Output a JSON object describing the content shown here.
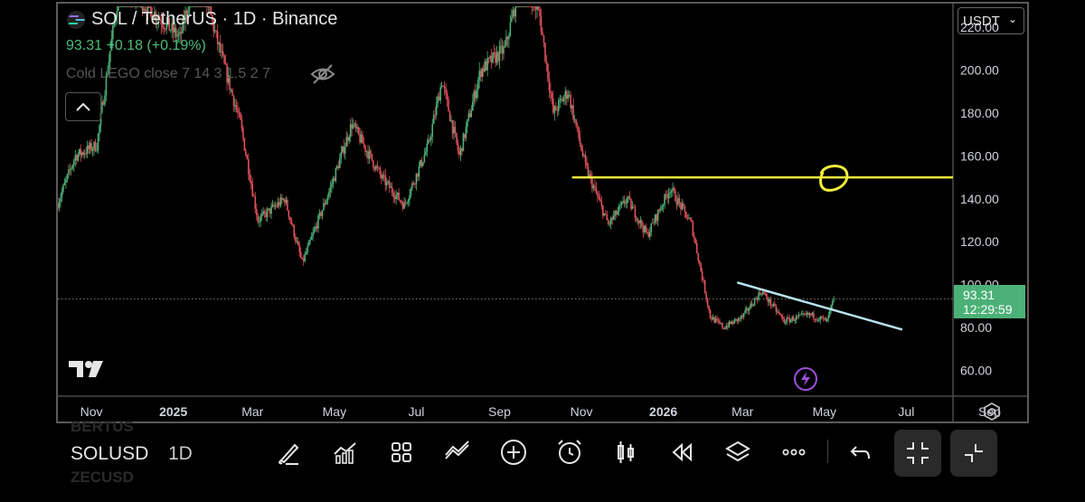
{
  "header": {
    "title": "SOL / TetherUS · 1D · Binance",
    "price_line": "93.31 +0.18 (+0.19%)",
    "indicator": "Cold LEGO close 7 14 3 1.5 2 7"
  },
  "currency": "USDT",
  "last_price": {
    "value": "93.31",
    "countdown": "12:29:59"
  },
  "colors": {
    "up": "#4cb177",
    "down": "#e0505a",
    "horizontal_line": "#f2ef3a",
    "trend_line": "#b9e3f2",
    "price_tag": "#4cb177"
  },
  "chart_data": {
    "type": "candlestick",
    "title": "SOL / TetherUS · 1D · Binance",
    "y_ticks": [
      "60.00",
      "80.00",
      "100.00",
      "120.00",
      "140.00",
      "160.00",
      "180.00",
      "200.00",
      "220.00"
    ],
    "y_range": [
      48,
      231
    ],
    "x_ticks": [
      "Nov",
      "2025",
      "Mar",
      "May",
      "Jul",
      "Sep",
      "Nov",
      "2026",
      "Mar",
      "May",
      "Jul",
      "Sep"
    ],
    "x_range": [
      "2024-10-07",
      "2026-09-29"
    ],
    "price_path": [
      [
        "2024-10-07",
        138
      ],
      [
        "2024-10-20",
        160
      ],
      [
        "2024-11-05",
        165
      ],
      [
        "2024-11-22",
        240
      ],
      [
        "2024-12-12",
        230
      ],
      [
        "2025-01-06",
        215
      ],
      [
        "2025-01-19",
        250
      ],
      [
        "2025-02-02",
        215
      ],
      [
        "2025-02-20",
        175
      ],
      [
        "2025-03-05",
        130
      ],
      [
        "2025-03-25",
        140
      ],
      [
        "2025-04-07",
        110
      ],
      [
        "2025-04-28",
        145
      ],
      [
        "2025-05-14",
        175
      ],
      [
        "2025-06-05",
        150
      ],
      [
        "2025-06-22",
        137
      ],
      [
        "2025-07-10",
        165
      ],
      [
        "2025-07-20",
        195
      ],
      [
        "2025-08-02",
        160
      ],
      [
        "2025-08-18",
        200
      ],
      [
        "2025-09-05",
        210
      ],
      [
        "2025-09-18",
        245
      ],
      [
        "2025-10-01",
        225
      ],
      [
        "2025-10-11",
        180
      ],
      [
        "2025-10-22",
        190
      ],
      [
        "2025-11-04",
        155
      ],
      [
        "2025-11-21",
        128
      ],
      [
        "2025-12-05",
        140
      ],
      [
        "2025-12-20",
        123
      ],
      [
        "2026-01-06",
        145
      ],
      [
        "2026-01-22",
        128
      ],
      [
        "2026-02-05",
        85
      ],
      [
        "2026-02-15",
        80
      ],
      [
        "2026-03-01",
        85
      ],
      [
        "2026-03-15",
        97
      ],
      [
        "2026-04-01",
        83
      ],
      [
        "2026-04-20",
        86
      ],
      [
        "2026-05-03",
        83
      ],
      [
        "2026-05-08",
        93.31
      ]
    ],
    "last_close": 93.31,
    "horizontal_level": {
      "value": 150,
      "from": "2025-10-25"
    },
    "trend_line": {
      "from": [
        "2026-02-25",
        101
      ],
      "to": [
        "2026-06-28",
        79
      ]
    },
    "grid": false
  },
  "toolbar": {
    "symbol": "SOLUSD",
    "interval": "1D",
    "ghost_top": "BERTUS",
    "ghost_bottom": "ZECUSD"
  }
}
